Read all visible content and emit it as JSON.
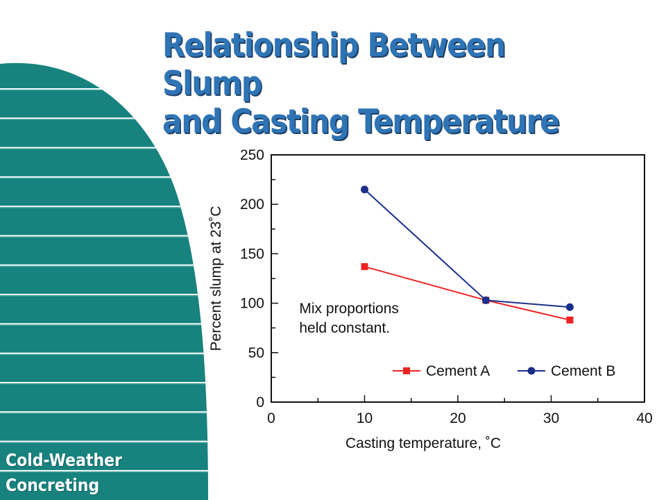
{
  "slide": {
    "title_line1": "Relationship Between Slump",
    "title_line2": "and Casting Temperature",
    "footer_line1": "Cold-Weather",
    "footer_line2": "Concreting",
    "colors": {
      "title": "#2f74b5",
      "teal": "#17827e",
      "band_edge": "#7ec8c4"
    }
  },
  "chart_data": {
    "type": "line",
    "xlabel": "Casting temperature, ˚C",
    "ylabel": "Percent slump at 23˚C",
    "xlim": [
      0,
      40
    ],
    "ylim": [
      0,
      250
    ],
    "xticks": [
      0,
      10,
      20,
      30,
      40
    ],
    "yticks": [
      0,
      50,
      100,
      150,
      200,
      250
    ],
    "annotation_line1": "Mix proportions",
    "annotation_line2": "held constant.",
    "legend_position": "bottom-right",
    "series": [
      {
        "name": "Cement A",
        "color": "#ee2222",
        "marker": "square",
        "x": [
          10,
          23,
          32
        ],
        "y": [
          137,
          103,
          83
        ]
      },
      {
        "name": "Cement B",
        "color": "#1a2f8a",
        "marker": "circle",
        "x": [
          10,
          23,
          32
        ],
        "y": [
          215,
          103,
          96
        ]
      }
    ]
  }
}
